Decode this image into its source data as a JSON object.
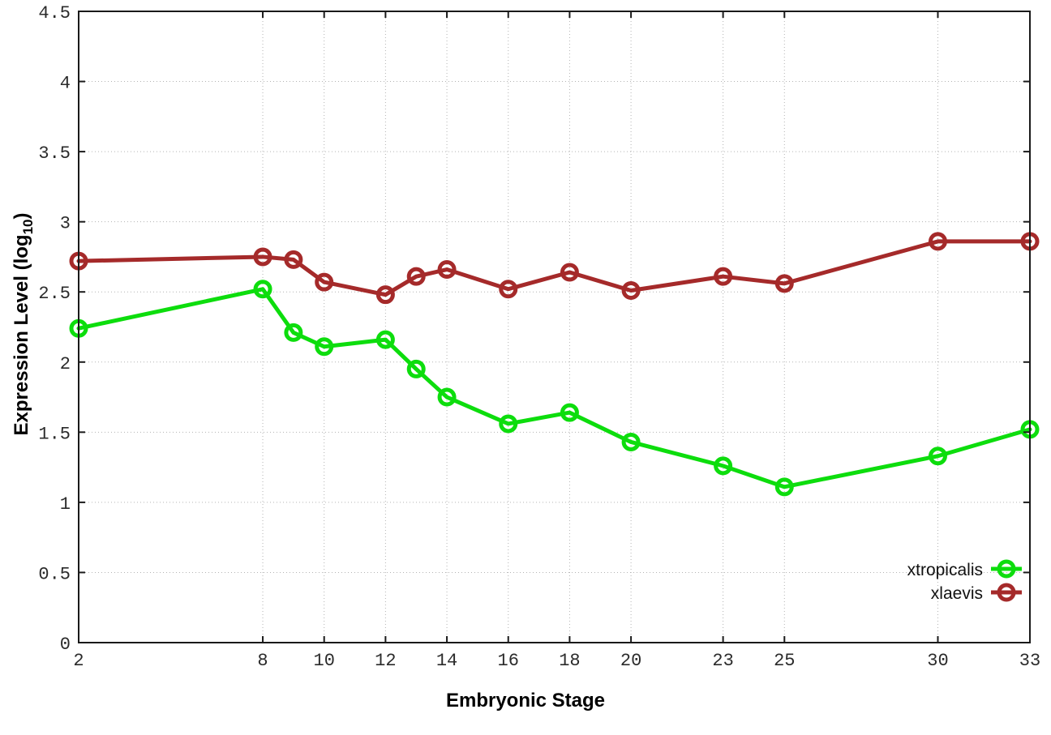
{
  "chart_data": {
    "type": "line",
    "xlabel": "Embryonic Stage",
    "ylabel": "Expression Level (log10)",
    "ylabel_parts": {
      "main": "Expression Level (log",
      "sub": "10",
      "end": ")"
    },
    "x": [
      2,
      8,
      9,
      10,
      12,
      13,
      14,
      16,
      18,
      20,
      23,
      25,
      30,
      33
    ],
    "series": [
      {
        "name": "xtropicalis",
        "color": "#0ddd0d",
        "values": [
          2.24,
          2.52,
          2.21,
          2.11,
          2.16,
          1.95,
          1.75,
          1.56,
          1.64,
          1.43,
          1.26,
          1.11,
          1.33,
          1.52
        ]
      },
      {
        "name": "xlaevis",
        "color": "#a52a2a",
        "values": [
          2.72,
          2.75,
          2.73,
          2.57,
          2.48,
          2.61,
          2.66,
          2.52,
          2.64,
          2.51,
          2.61,
          2.56,
          2.86,
          2.86
        ]
      }
    ],
    "xticks": [
      2,
      8,
      10,
      12,
      14,
      16,
      18,
      20,
      23,
      25,
      30,
      33
    ],
    "xtick_labels": [
      "2",
      "8",
      "10",
      "12",
      "14",
      "16",
      "18",
      "20",
      "23",
      "25",
      "30",
      "33"
    ],
    "yticks": [
      0,
      0.5,
      1,
      1.5,
      2,
      2.5,
      3,
      3.5,
      4,
      4.5
    ],
    "ytick_labels": [
      "0",
      "0.5",
      "1",
      "1.5",
      "2",
      "2.5",
      "3",
      "3.5",
      "4",
      "4.5"
    ],
    "xlim": [
      2,
      33
    ],
    "ylim": [
      0,
      4.5
    ],
    "grid": true,
    "legend_position": "bottom-right",
    "legend_labels": [
      "xtropicalis",
      "xlaevis"
    ],
    "marker": "open-circle"
  }
}
